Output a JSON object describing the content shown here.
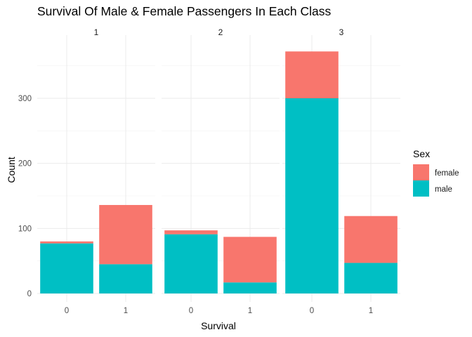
{
  "chart_data": {
    "type": "bar",
    "stacked": true,
    "faceted": true,
    "title": "Survival Of Male & Female Passengers In Each Class",
    "xlabel": "Survival",
    "ylabel": "Count",
    "categories": [
      "0",
      "1"
    ],
    "ylim": [
      0,
      385
    ],
    "yticks": [
      0,
      100,
      200,
      300
    ],
    "grid": true,
    "legend": {
      "title": "Sex",
      "position": "right",
      "entries": [
        "female",
        "male"
      ]
    },
    "colors": {
      "female": "#F8766D",
      "male": "#00BFC4"
    },
    "facets": [
      {
        "label": "1",
        "series": [
          {
            "name": "male",
            "values": [
              77,
              45
            ]
          },
          {
            "name": "female",
            "values": [
              3,
              91
            ]
          }
        ]
      },
      {
        "label": "2",
        "series": [
          {
            "name": "male",
            "values": [
              91,
              17
            ]
          },
          {
            "name": "female",
            "values": [
              6,
              70
            ]
          }
        ]
      },
      {
        "label": "3",
        "series": [
          {
            "name": "male",
            "values": [
              300,
              47
            ]
          },
          {
            "name": "female",
            "values": [
              72,
              72
            ]
          }
        ]
      }
    ]
  }
}
